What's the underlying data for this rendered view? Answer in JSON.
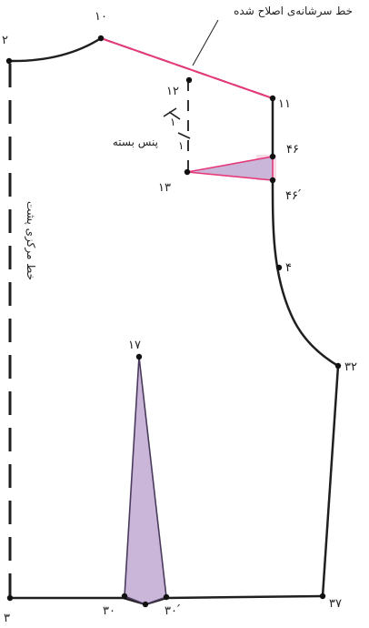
{
  "colors": {
    "outline": "#1f1f1f",
    "corrected_line": "#e6397a",
    "dart_fill": "#c9b6d8",
    "dart_edge": "#4a3b5c",
    "dash": "#1f1f1f"
  },
  "points": {
    "p2": "۲",
    "p3": "۳",
    "p4": "۴",
    "p10": "۱۰",
    "p11": "۱۱",
    "p12": "۱۲",
    "p13": "۱۳",
    "p17": "۱۷",
    "p30": "۳۰",
    "p30p": "۳۰ ́",
    "p32": "۳۲",
    "p37": "۳۷",
    "p46": "۴۶",
    "p46p": "۴۶ ́"
  },
  "annotations": {
    "corrected_shoulder_line": "خط سرشانه‌ی اصلاح شده",
    "closed_dart": "پنس بسته",
    "center_back_line": "خط مرکزی پشت",
    "tick_mark": "۱"
  }
}
